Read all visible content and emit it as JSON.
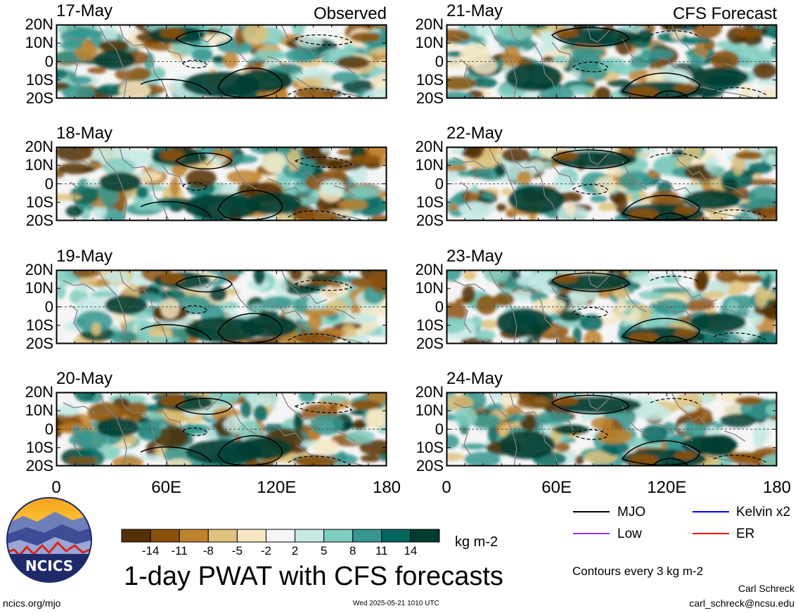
{
  "panels": [
    {
      "date": "17-May",
      "label": "Observed",
      "col": 0,
      "row": 0,
      "kind": "obs"
    },
    {
      "date": "18-May",
      "label": "",
      "col": 0,
      "row": 1,
      "kind": "obs"
    },
    {
      "date": "19-May",
      "label": "",
      "col": 0,
      "row": 2,
      "kind": "obs"
    },
    {
      "date": "20-May",
      "label": "",
      "col": 0,
      "row": 3,
      "kind": "obs"
    },
    {
      "date": "21-May",
      "label": "CFS Forecast",
      "col": 1,
      "row": 0,
      "kind": "fc"
    },
    {
      "date": "22-May",
      "label": "",
      "col": 1,
      "row": 1,
      "kind": "fc"
    },
    {
      "date": "23-May",
      "label": "",
      "col": 1,
      "row": 2,
      "kind": "fc"
    },
    {
      "date": "24-May",
      "label": "",
      "col": 1,
      "row": 3,
      "kind": "fc"
    }
  ],
  "lat_labels": [
    "20N",
    "10N",
    "0",
    "10S",
    "20S"
  ],
  "lon_labels": [
    "0",
    "60E",
    "120E",
    "180"
  ],
  "legend": {
    "mjo": "MJO",
    "kelvin": "Kelvin x2",
    "low": "Low",
    "er": "ER",
    "colors": {
      "mjo": "#000000",
      "kelvin": "#0000ff",
      "low": "#9b30ff",
      "er": "#ff0000"
    }
  },
  "colorbar": {
    "ticks": [
      "-14",
      "-11",
      "-8",
      "-5",
      "-2",
      "2",
      "5",
      "8",
      "11",
      "14"
    ],
    "colors": [
      "#543005",
      "#8c510a",
      "#bf812d",
      "#dfc27d",
      "#f6e8c3",
      "#f5f5f5",
      "#c7eae5",
      "#80cdc1",
      "#35978f",
      "#01665e",
      "#003c30"
    ],
    "unit": "kg m-2"
  },
  "title": "1-day PWAT with CFS forecasts",
  "contour_note": "Contours every 3 kg m-2",
  "author": "Carl Schreck",
  "email": "carl_schreck@ncsu.edu",
  "site": "ncics.org/mjo",
  "timestamp": "Wed 2025-05-21 1010 UTC",
  "logo_text": "NCICS"
}
